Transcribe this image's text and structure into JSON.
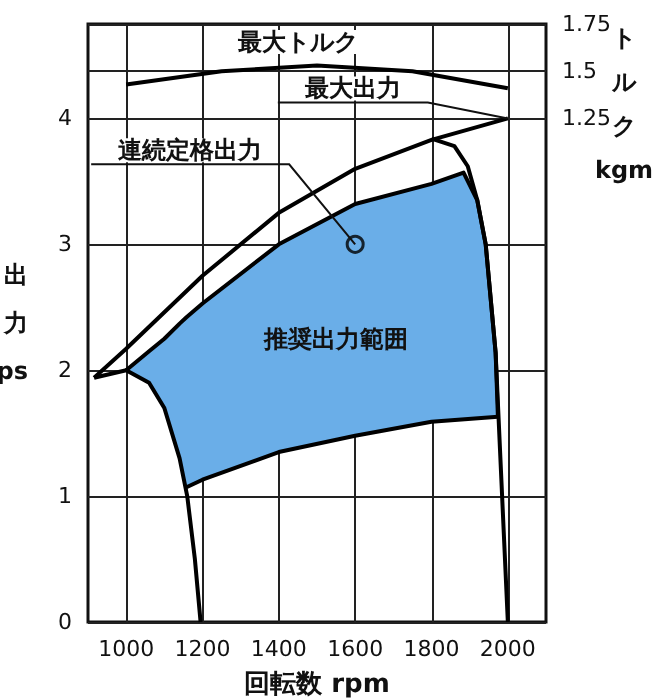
{
  "chart_data": {
    "type": "line",
    "xlabel": "回転数 rpm",
    "ylabel": "出力 ps",
    "y2label": "トルク kgm",
    "xlim": [
      900,
      2100
    ],
    "xticks": [
      1000,
      1200,
      1400,
      1600,
      1800,
      2000
    ],
    "ylim": [
      0,
      4.75
    ],
    "yticks": [
      0,
      1,
      2,
      3,
      4
    ],
    "y2lim": [
      -1.4167,
      1.75
    ],
    "y2ticks": [
      1.25,
      1.5,
      1.75
    ],
    "grid": true,
    "marker": "none",
    "annotations": [
      "最大トルク",
      {
        "text": "最大出力",
        "x": 2000,
        "y": 4.0
      },
      {
        "text": "連続定格出力",
        "x": 1600,
        "y": 3.0
      },
      "推奨出力範囲"
    ],
    "series": [
      {
        "color": "#000000",
        "x": [
          916,
          1000,
          1200,
          1400,
          1600,
          1800,
          2000
        ],
        "values": [
          1.94,
          2.17,
          2.75,
          3.25,
          3.6,
          3.83,
          4.0
        ]
      },
      {
        "color": "#000000",
        "x": [
          1158,
          1200,
          1400,
          1600,
          1800,
          1974
        ],
        "values": [
          1.07,
          1.13,
          1.35,
          1.48,
          1.59,
          1.63
        ]
      },
      {
        "color": "#000000",
        "x": [
          1800,
          1860,
          1895,
          1920,
          1942,
          1968,
          1985,
          2000
        ],
        "values": [
          3.84,
          3.78,
          3.62,
          3.35,
          3.0,
          2.14,
          1.0,
          0
        ]
      },
      {
        "color": "#000000",
        "x": [
          1000,
          1060,
          1100,
          1140,
          1158,
          1200,
          1400,
          1600,
          1800,
          1884,
          1920,
          1942,
          1968,
          1974
        ],
        "values": [
          2.0,
          2.15,
          2.25,
          2.37,
          2.42,
          2.53,
          3.0,
          3.32,
          3.48,
          3.57,
          3.35,
          3.0,
          2.14,
          1.63
        ],
        "lower": [
          2.0,
          1.9,
          1.7,
          1.3,
          1.07,
          1.13,
          1.35,
          1.48,
          1.59,
          1.61,
          1.62,
          1.625,
          1.63,
          1.63
        ],
        "upper": [
          2.0,
          2.15,
          2.25,
          2.37,
          2.42,
          2.53,
          3.0,
          3.32,
          3.48,
          3.57,
          3.35,
          3.0,
          2.14,
          1.63
        ]
      },
      {
        "color": "#000000",
        "x": [
          916,
          1000,
          1060,
          1100,
          1140,
          1160,
          1180,
          1195
        ],
        "values": [
          1.94,
          2.0,
          1.9,
          1.7,
          1.3,
          1.0,
          0.5,
          0
        ]
      },
      {
        "color": "#000000",
        "axis": "y2",
        "x": [
          1000,
          1250,
          1500,
          1750,
          2000
        ],
        "values": [
          1.43,
          1.5,
          1.53,
          1.5,
          1.41
        ]
      },
      {
        "type": "scatter",
        "marker": "circle",
        "color": "#000000",
        "x": [
          1600
        ],
        "values": [
          3.0
        ]
      }
    ]
  }
}
